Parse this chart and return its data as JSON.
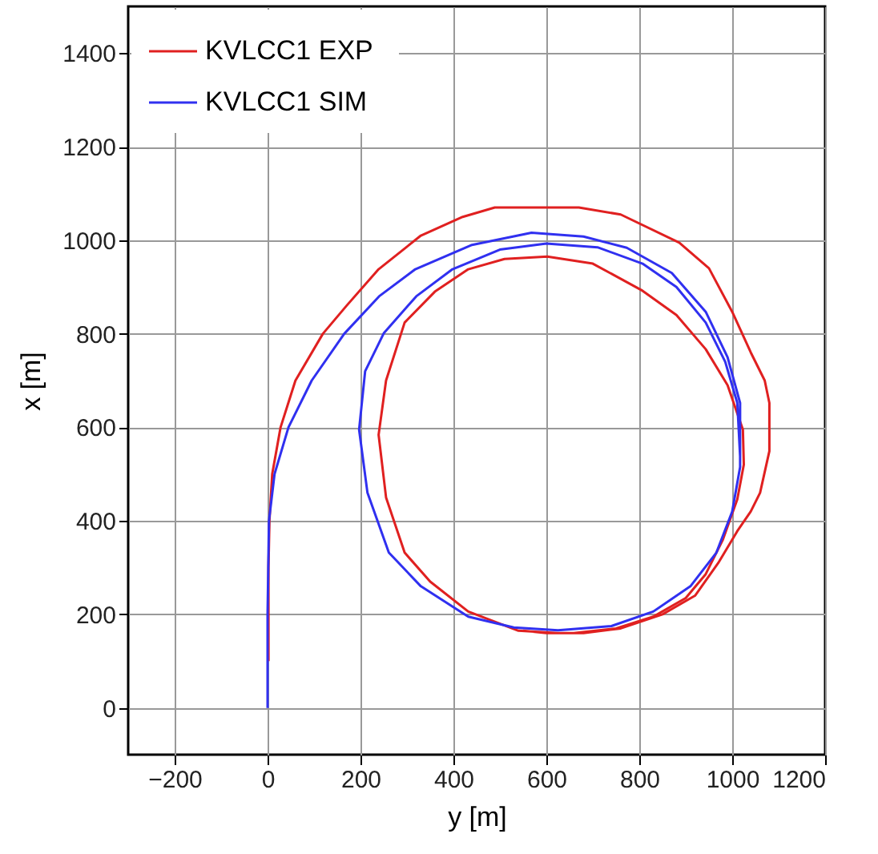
{
  "chart_data": {
    "type": "line",
    "xlabel": "y  [m]",
    "ylabel": "x  [m]",
    "xlim": [
      -300,
      1200
    ],
    "xticks": [
      -200,
      0,
      200,
      400,
      600,
      800,
      1000,
      1200
    ],
    "ylim": [
      -100,
      1500
    ],
    "yticks": [
      0,
      200,
      400,
      600,
      800,
      1000,
      1200,
      1400
    ],
    "grid": true,
    "legend": "top left",
    "line_style": "solid",
    "series": [
      {
        "name": "KVLCC1  EXP",
        "color": "#e02020",
        "x": [
          2,
          2,
          4,
          10,
          28,
          60,
          119,
          170,
          239,
          330,
          420,
          489,
          670,
          760,
          886,
          950,
          1000,
          1040,
          1070,
          1080,
          1080,
          1060,
          1040,
          1011,
          970,
          920,
          850,
          760,
          680,
          625,
          540,
          432,
          350,
          295,
          255,
          239,
          255,
          295,
          360,
          432,
          510,
          602,
          700,
          807,
          880,
          943,
          990,
          1023,
          1025,
          1011,
          980,
          943,
          900,
          830,
          750,
          659,
          600,
          550
        ],
        "values": [
          100,
          300,
          400,
          500,
          600,
          700,
          800,
          860,
          938,
          1010,
          1050,
          1070,
          1070,
          1055,
          995,
          940,
          847,
          760,
          700,
          652,
          549,
          460,
          420,
          378,
          310,
          240,
          200,
          170,
          160,
          160,
          165,
          206,
          270,
          332,
          450,
          584,
          700,
          824,
          890,
          938,
          960,
          965,
          950,
          892,
          840,
          767,
          690,
          595,
          520,
          446,
          360,
          286,
          235,
          195,
          170,
          160,
          160,
          165
        ]
      },
      {
        "name": "KVLCC1  SIM",
        "color": "#3030f0",
        "x": [
          0,
          0,
          3,
          15,
          45,
          95,
          165,
          240,
          318,
          440,
          568,
          680,
          773,
          870,
          943,
          990,
          1017,
          1017,
          1000,
          966,
          910,
          830,
          740,
          625,
          530,
          432,
          330,
          261,
          215,
          197,
          210,
          250,
          320,
          398,
          500,
          600,
          710,
          807,
          880,
          943,
          985,
          1011,
          1017
        ],
        "values": [
          0,
          200,
          400,
          500,
          600,
          700,
          800,
          880,
          938,
          990,
          1016,
          1008,
          984,
          930,
          847,
          750,
          652,
          515,
          420,
          332,
          260,
          206,
          175,
          166,
          172,
          195,
          260,
          332,
          460,
          595,
          720,
          801,
          880,
          938,
          980,
          993,
          985,
          950,
          900,
          824,
          740,
          652,
          538
        ]
      }
    ]
  }
}
